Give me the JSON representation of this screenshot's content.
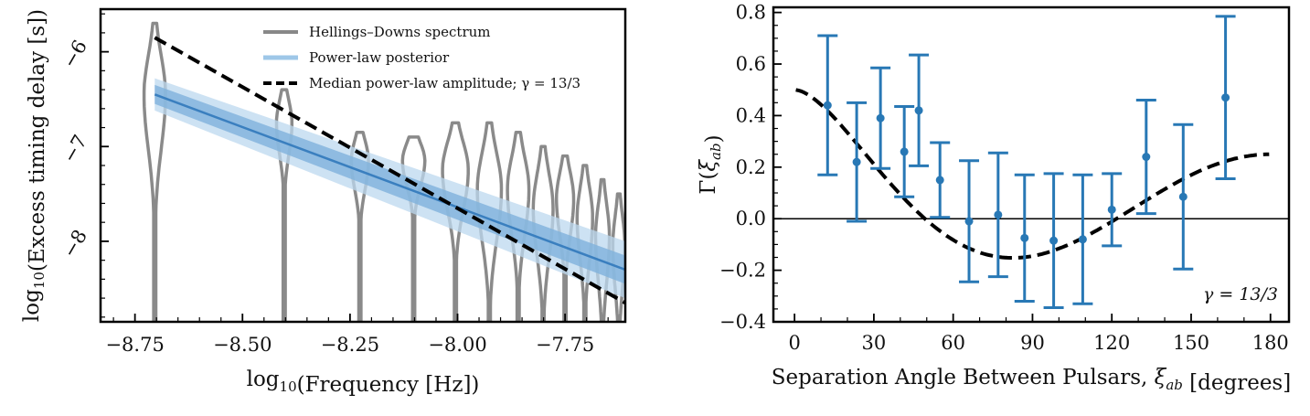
{
  "chart_data": [
    {
      "type": "violin",
      "xlabel": "log10(Frequency [Hz])",
      "ylabel": "log10(Excess timing delay [s])",
      "xlim": [
        -8.83,
        -7.61
      ],
      "ylim": [
        -8.85,
        -5.55
      ],
      "xticks": [
        -8.75,
        -8.5,
        -8.25,
        -8.0,
        -7.75
      ],
      "xtick_labels": [
        "−8.75",
        "−8.50",
        "−8.25",
        "−8.00",
        "−7.75"
      ],
      "yticks": [
        -6,
        -7,
        -8
      ],
      "ytick_labels": [
        "−6",
        "−7",
        "−8"
      ],
      "legend": {
        "placement": "top-center",
        "entries": [
          {
            "label": "Hellings–Downs spectrum",
            "color": "#888888",
            "style": "solid-thick"
          },
          {
            "label": "Power-law posterior",
            "color": "#9ec7e8",
            "style": "band"
          },
          {
            "label": "Median power-law amplitude; γ = 13/3",
            "color": "#000000",
            "style": "dashed"
          }
        ]
      },
      "violins": [
        {
          "x": -8.704,
          "peak": -6.45,
          "top": -5.7,
          "width": 0.025
        },
        {
          "x": -8.403,
          "peak": -6.75,
          "top": -6.4,
          "width": 0.018
        },
        {
          "x": -8.227,
          "peak": -7.15,
          "top": -6.85,
          "width": 0.02
        },
        {
          "x": -8.102,
          "peak": -7.15,
          "top": -6.9,
          "width": 0.026
        },
        {
          "x": -8.005,
          "peak": -7.25,
          "top": -6.75,
          "width": 0.03
        },
        {
          "x": -7.926,
          "peak": -7.45,
          "top": -6.75,
          "width": 0.028
        },
        {
          "x": -7.859,
          "peak": -7.45,
          "top": -6.85,
          "width": 0.025
        },
        {
          "x": -7.801,
          "peak": -7.65,
          "top": -7.0,
          "width": 0.023
        },
        {
          "x": -7.75,
          "peak": -7.55,
          "top": -7.1,
          "width": 0.02
        },
        {
          "x": -7.704,
          "peak": -7.75,
          "top": -7.2,
          "width": 0.018
        },
        {
          "x": -7.663,
          "peak": -7.95,
          "top": -7.35,
          "width": 0.016
        },
        {
          "x": -7.625,
          "peak": -8.05,
          "top": -7.5,
          "width": 0.014
        }
      ],
      "dashed_line": {
        "x": [
          -8.704,
          -7.61
        ],
        "y": [
          -5.85,
          -8.65
        ]
      },
      "posterior_band": {
        "median": {
          "x": [
            -8.704,
            -7.61
          ],
          "y": [
            -6.45,
            -8.3
          ]
        },
        "inner": {
          "x": [
            -8.704,
            -7.61
          ],
          "y_low": [
            -6.55,
            -8.45
          ],
          "y_high": [
            -6.35,
            -8.15
          ]
        },
        "outer": {
          "x": [
            -8.704,
            -7.61
          ],
          "y_low": [
            -6.62,
            -8.6
          ],
          "y_high": [
            -6.28,
            -8.0
          ]
        }
      }
    },
    {
      "type": "errorbar",
      "xlabel": "Separation Angle Between Pulsars, ξab [degrees]",
      "ylabel": "Γ(ξab)",
      "xlim": [
        -8,
        187
      ],
      "ylim": [
        -0.4,
        0.82
      ],
      "xticks": [
        0,
        30,
        60,
        90,
        120,
        150,
        180
      ],
      "xtick_labels": [
        "0",
        "30",
        "60",
        "90",
        "120",
        "150",
        "180"
      ],
      "yticks": [
        -0.4,
        -0.2,
        0.0,
        0.2,
        0.4,
        0.6,
        0.8
      ],
      "ytick_labels": [
        "−0.4",
        "−0.2",
        "0.0",
        "0.2",
        "0.4",
        "0.6",
        "0.8"
      ],
      "annotation": "γ = 13/3",
      "series": [
        {
          "color": "#2878b5",
          "x": [
            12.5,
            23.5,
            32.5,
            41.5,
            47,
            55,
            66,
            77,
            87,
            98,
            109,
            120,
            133,
            147,
            163
          ],
          "y": [
            0.44,
            0.22,
            0.39,
            0.26,
            0.42,
            0.15,
            -0.01,
            0.015,
            -0.075,
            -0.085,
            -0.08,
            0.035,
            0.24,
            0.085,
            0.47
          ],
          "err": [
            0.27,
            0.23,
            0.195,
            0.175,
            0.215,
            0.145,
            0.235,
            0.24,
            0.245,
            0.26,
            0.25,
            0.14,
            0.22,
            0.28,
            0.315
          ]
        }
      ],
      "hellings_downs_curve": {
        "style": "dashed",
        "color": "#000000"
      },
      "zero_line": {
        "y": 0,
        "color": "#000000"
      }
    }
  ]
}
